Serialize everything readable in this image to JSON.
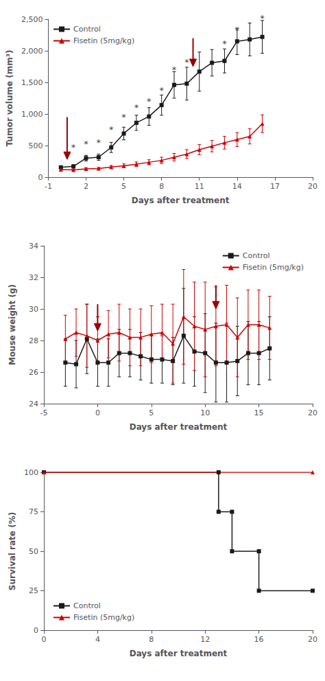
{
  "chart_data": [
    {
      "type": "line",
      "xlabel": "Days after treatment",
      "ylabel": "Tumor volume (mm³)",
      "xlim": [
        -1,
        20
      ],
      "ylim": [
        0,
        2500
      ],
      "xticks": [
        -1,
        2,
        5,
        8,
        11,
        14,
        17,
        20
      ],
      "yticks": [
        0,
        500,
        1000,
        1500,
        2000,
        2500
      ],
      "grid": false,
      "legend": "upper left",
      "series": [
        {
          "name": "Control",
          "color": "#1a1a1a",
          "marker": "square",
          "x": [
            0,
            1,
            2,
            3,
            4,
            5,
            6,
            7,
            8,
            9,
            10,
            11,
            12,
            13,
            14,
            15,
            16
          ],
          "values": [
            155,
            170,
            300,
            315,
            470,
            690,
            860,
            960,
            1140,
            1460,
            1480,
            1670,
            1810,
            1840,
            2150,
            2180,
            2220
          ],
          "errors": [
            20,
            25,
            45,
            50,
            80,
            100,
            120,
            140,
            160,
            210,
            260,
            310,
            210,
            190,
            210,
            260,
            260
          ]
        },
        {
          "name": "Fisetin (5mg/kg)",
          "color": "#cc0000",
          "marker": "triangle",
          "x": [
            0,
            1,
            2,
            3,
            4,
            5,
            6,
            7,
            8,
            9,
            10,
            11,
            12,
            13,
            14,
            15,
            16
          ],
          "values": [
            120,
            115,
            130,
            135,
            160,
            180,
            205,
            235,
            265,
            315,
            365,
            435,
            490,
            545,
            595,
            645,
            845
          ],
          "errors": [
            15,
            15,
            20,
            20,
            25,
            30,
            35,
            40,
            50,
            60,
            70,
            80,
            90,
            100,
            110,
            120,
            140
          ]
        }
      ],
      "annotations": [
        {
          "text": "*",
          "x": 1,
          "y": 440,
          "color": "#444444"
        },
        {
          "text": "*",
          "x": 2,
          "y": 490,
          "color": "#444444"
        },
        {
          "text": "*",
          "x": 3,
          "y": 510,
          "color": "#444444"
        },
        {
          "text": "*",
          "x": 4,
          "y": 720,
          "color": "#444444"
        },
        {
          "text": "*",
          "x": 5,
          "y": 910,
          "color": "#444444"
        },
        {
          "text": "*",
          "x": 6,
          "y": 1060,
          "color": "#444444"
        },
        {
          "text": "*",
          "x": 7,
          "y": 1160,
          "color": "#444444"
        },
        {
          "text": "*",
          "x": 8,
          "y": 1340,
          "color": "#444444"
        },
        {
          "text": "*",
          "x": 9,
          "y": 1660,
          "color": "#444444"
        },
        {
          "text": "*",
          "x": 10,
          "y": 1780,
          "color": "#444444"
        },
        {
          "text": "*",
          "x": 13,
          "y": 2080,
          "color": "#444444"
        },
        {
          "text": "*",
          "x": 14,
          "y": 2280,
          "color": "#444444"
        },
        {
          "text": "*",
          "x": 16,
          "y": 2480,
          "color": "#444444"
        }
      ],
      "arrows": [
        {
          "x": 0.5,
          "y_tip": 280,
          "y_tail": 950,
          "color": "#990000"
        },
        {
          "x": 10.5,
          "y_tip": 1750,
          "y_tail": 2200,
          "color": "#990000"
        }
      ]
    },
    {
      "type": "line",
      "xlabel": "Days after treatment",
      "ylabel": "Mouse weight (g)",
      "xlim": [
        -5,
        20
      ],
      "ylim": [
        24,
        34
      ],
      "xticks": [
        -5,
        0,
        5,
        10,
        15,
        20
      ],
      "yticks": [
        24,
        26,
        28,
        30,
        32,
        34
      ],
      "grid": false,
      "legend": "upper right",
      "series": [
        {
          "name": "Control",
          "color": "#1a1a1a",
          "marker": "square",
          "x": [
            -3,
            -2,
            -1,
            0,
            1,
            2,
            3,
            4,
            5,
            6,
            7,
            8,
            9,
            10,
            11,
            12,
            13,
            14,
            15,
            16
          ],
          "values": [
            26.6,
            26.5,
            28.1,
            26.6,
            26.6,
            27.2,
            27.2,
            27.0,
            26.8,
            26.8,
            26.7,
            28.3,
            27.3,
            27.2,
            26.6,
            26.6,
            26.7,
            27.2,
            27.2,
            27.5
          ],
          "errors": [
            1.5,
            1.5,
            2.2,
            1.5,
            1.5,
            1.5,
            1.5,
            1.5,
            1.5,
            1.5,
            1.5,
            3.0,
            2.2,
            2.5,
            2.5,
            2.5,
            2.2,
            2.0,
            2.0,
            2.0
          ]
        },
        {
          "name": "Fisetin (5mg/kg)",
          "color": "#cc0000",
          "marker": "triangle",
          "x": [
            -3,
            -2,
            -1,
            0,
            1,
            2,
            3,
            4,
            5,
            6,
            7,
            8,
            9,
            10,
            11,
            12,
            13,
            14,
            15,
            16
          ],
          "values": [
            28.1,
            28.5,
            28.3,
            28.0,
            28.4,
            28.5,
            28.2,
            28.2,
            28.4,
            28.5,
            27.8,
            29.5,
            28.9,
            28.7,
            28.9,
            29.0,
            28.2,
            29.0,
            29.0,
            28.8
          ],
          "errors": [
            1.5,
            1.5,
            2.0,
            1.5,
            1.5,
            1.8,
            1.8,
            1.8,
            1.8,
            1.8,
            2.5,
            3.0,
            2.8,
            3.0,
            2.5,
            2.5,
            2.5,
            2.2,
            2.2,
            2.0
          ]
        }
      ],
      "arrows": [
        {
          "x": 0,
          "y_tip": 28.6,
          "y_tail": 30.3,
          "color": "#990000"
        },
        {
          "x": 11,
          "y_tip": 30.0,
          "y_tail": 31.5,
          "color": "#990000"
        }
      ]
    },
    {
      "type": "line",
      "xlabel": "Days after treatment",
      "ylabel": "Survival rate (%)",
      "xlim": [
        0,
        20
      ],
      "ylim": [
        0,
        100
      ],
      "xticks": [
        0,
        4,
        8,
        12,
        16,
        20
      ],
      "yticks": [
        0,
        25,
        50,
        75,
        100
      ],
      "grid": false,
      "legend": "lower left",
      "series": [
        {
          "name": "Control",
          "color": "#1a1a1a",
          "marker": "square",
          "x": [
            0,
            13,
            13,
            14,
            14,
            16,
            16,
            20
          ],
          "values": [
            100,
            100,
            75,
            75,
            50,
            50,
            25,
            25
          ]
        },
        {
          "name": "Fisetin (5mg/kg)",
          "color": "#cc0000",
          "marker": "triangle",
          "x": [
            0,
            20
          ],
          "values": [
            100,
            100
          ]
        }
      ]
    }
  ]
}
